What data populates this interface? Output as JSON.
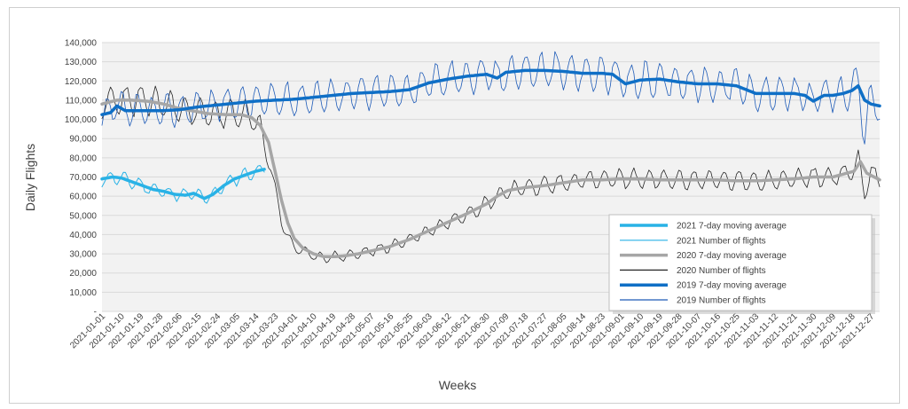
{
  "chart_data": {
    "type": "line",
    "title": "",
    "xlabel": "Weeks",
    "ylabel": "Daily Flights",
    "ylim": [
      0,
      140000
    ],
    "yticks": [
      0,
      10000,
      20000,
      30000,
      40000,
      50000,
      60000,
      70000,
      80000,
      90000,
      100000,
      110000,
      120000,
      130000,
      140000
    ],
    "ytick_labels": [
      "-",
      "10,000",
      "20,000",
      "30,000",
      "40,000",
      "50,000",
      "60,000",
      "70,000",
      "80,000",
      "90,000",
      "100,000",
      "110,000",
      "120,000",
      "130,000",
      "140,000"
    ],
    "xticks": [
      "2021-01-01",
      "2021-01-10",
      "2021-01-19",
      "2021-01-28",
      "2021-02-06",
      "2021-02-15",
      "2021-02-24",
      "2021-03-05",
      "2021-03-14",
      "2021-03-23",
      "2021-04-01",
      "2021-04-10",
      "2021-04-19",
      "2021-04-28",
      "2021-05-07",
      "2021-05-16",
      "2021-05-25",
      "2021-06-03",
      "2021-06-12",
      "2021-06-21",
      "2021-06-30",
      "2021-07-09",
      "2021-07-18",
      "2021-07-27",
      "2021-08-05",
      "2021-08-14",
      "2021-08-23",
      "2021-09-01",
      "2021-09-10",
      "2021-09-19",
      "2021-09-28",
      "2021-10-07",
      "2021-10-16",
      "2021-10-25",
      "2021-11-03",
      "2021-11-12",
      "2021-11-21",
      "2021-11-30",
      "2021-12-09",
      "2021-12-18",
      "2021-12-27"
    ],
    "x_start": "2021-01-01",
    "x_end": "2021-12-31",
    "grid": "horizontal",
    "legend_position": "bottom-right",
    "series": [
      {
        "name": "2021 7-day moving average",
        "color": "#29b2e6",
        "width": 3.5,
        "kind": "avg",
        "anchors": [
          [
            "2021-01-01",
            69000
          ],
          [
            "2021-01-06",
            70000
          ],
          [
            "2021-01-10",
            69500
          ],
          [
            "2021-01-15",
            67500
          ],
          [
            "2021-01-20",
            65500
          ],
          [
            "2021-01-25",
            63500
          ],
          [
            "2021-01-30",
            62500
          ],
          [
            "2021-02-04",
            61000
          ],
          [
            "2021-02-09",
            60500
          ],
          [
            "2021-02-13",
            61500
          ],
          [
            "2021-02-18",
            58800
          ],
          [
            "2021-02-22",
            61000
          ],
          [
            "2021-02-27",
            65500
          ],
          [
            "2021-03-04",
            69000
          ],
          [
            "2021-03-09",
            71000
          ],
          [
            "2021-03-14",
            73000
          ],
          [
            "2021-03-18",
            74000
          ]
        ]
      },
      {
        "name": "2021 Number of flights",
        "color": "#29b2e6",
        "width": 1,
        "kind": "daily",
        "amp": 5500,
        "seed": 11,
        "anchors": [
          [
            "2021-01-01",
            68000
          ],
          [
            "2021-01-06",
            70000
          ],
          [
            "2021-01-10",
            69500
          ],
          [
            "2021-01-15",
            67500
          ],
          [
            "2021-01-20",
            65500
          ],
          [
            "2021-01-25",
            63500
          ],
          [
            "2021-01-30",
            62500
          ],
          [
            "2021-02-04",
            61000
          ],
          [
            "2021-02-09",
            60500
          ],
          [
            "2021-02-13",
            61500
          ],
          [
            "2021-02-18",
            58800
          ],
          [
            "2021-02-22",
            61000
          ],
          [
            "2021-02-27",
            65500
          ],
          [
            "2021-03-04",
            69000
          ],
          [
            "2021-03-09",
            71000
          ],
          [
            "2021-03-14",
            73000
          ],
          [
            "2021-03-18",
            74000
          ]
        ]
      },
      {
        "name": "2020 7-day moving average",
        "color": "#a6a6a6",
        "width": 3.5,
        "kind": "avg",
        "anchors": [
          [
            "2021-01-01",
            108000
          ],
          [
            "2021-01-08",
            110000
          ],
          [
            "2021-01-15",
            110000
          ],
          [
            "2021-01-22",
            109500
          ],
          [
            "2021-01-30",
            108000
          ],
          [
            "2021-02-05",
            106000
          ],
          [
            "2021-02-12",
            104500
          ],
          [
            "2021-02-20",
            103000
          ],
          [
            "2021-02-28",
            102500
          ],
          [
            "2021-03-07",
            102500
          ],
          [
            "2021-03-12",
            101000
          ],
          [
            "2021-03-16",
            97000
          ],
          [
            "2021-03-20",
            88000
          ],
          [
            "2021-03-23",
            73000
          ],
          [
            "2021-03-26",
            58000
          ],
          [
            "2021-03-29",
            46000
          ],
          [
            "2021-04-01",
            38000
          ],
          [
            "2021-04-05",
            33000
          ],
          [
            "2021-04-10",
            30000
          ],
          [
            "2021-04-15",
            28500
          ],
          [
            "2021-04-20",
            28500
          ],
          [
            "2021-04-25",
            29000
          ],
          [
            "2021-05-01",
            30000
          ],
          [
            "2021-05-07",
            31500
          ],
          [
            "2021-05-15",
            33500
          ],
          [
            "2021-05-25",
            37500
          ],
          [
            "2021-06-03",
            42000
          ],
          [
            "2021-06-12",
            46500
          ],
          [
            "2021-06-21",
            51000
          ],
          [
            "2021-06-30",
            56000
          ],
          [
            "2021-07-05",
            60000
          ],
          [
            "2021-07-10",
            63000
          ],
          [
            "2021-07-18",
            64500
          ],
          [
            "2021-07-27",
            65500
          ],
          [
            "2021-08-05",
            67000
          ],
          [
            "2021-08-14",
            68500
          ],
          [
            "2021-08-23",
            68500
          ],
          [
            "2021-09-01",
            69000
          ],
          [
            "2021-09-10",
            69000
          ],
          [
            "2021-09-19",
            68500
          ],
          [
            "2021-09-28",
            68500
          ],
          [
            "2021-10-07",
            68500
          ],
          [
            "2021-10-16",
            68500
          ],
          [
            "2021-10-25",
            68000
          ],
          [
            "2021-11-03",
            68000
          ],
          [
            "2021-11-12",
            68500
          ],
          [
            "2021-11-21",
            69000
          ],
          [
            "2021-11-30",
            70000
          ],
          [
            "2021-12-09",
            70000
          ],
          [
            "2021-12-14",
            71500
          ],
          [
            "2021-12-19",
            73000
          ],
          [
            "2021-12-22",
            78000
          ],
          [
            "2021-12-25",
            72000
          ],
          [
            "2021-12-31",
            68500
          ]
        ]
      },
      {
        "name": "2020 Number of flights",
        "color": "#262626",
        "width": 0.8,
        "kind": "daily",
        "amp": 7500,
        "seed": 23,
        "anchors": [
          [
            "2021-01-01",
            108000
          ],
          [
            "2021-01-08",
            110000
          ],
          [
            "2021-01-15",
            110000
          ],
          [
            "2021-01-22",
            109500
          ],
          [
            "2021-01-30",
            108000
          ],
          [
            "2021-02-05",
            106000
          ],
          [
            "2021-02-12",
            104500
          ],
          [
            "2021-02-20",
            103000
          ],
          [
            "2021-02-28",
            102500
          ],
          [
            "2021-03-07",
            102500
          ],
          [
            "2021-03-12",
            101000
          ],
          [
            "2021-03-16",
            95000
          ],
          [
            "2021-03-20",
            80000
          ],
          [
            "2021-03-23",
            63000
          ],
          [
            "2021-03-26",
            48000
          ],
          [
            "2021-03-29",
            38000
          ],
          [
            "2021-04-01",
            34000
          ],
          [
            "2021-04-05",
            31000
          ],
          [
            "2021-04-10",
            29000
          ],
          [
            "2021-04-15",
            28000
          ],
          [
            "2021-04-20",
            28500
          ],
          [
            "2021-04-25",
            29000
          ],
          [
            "2021-05-01",
            30000
          ],
          [
            "2021-05-07",
            31500
          ],
          [
            "2021-05-15",
            33500
          ],
          [
            "2021-05-25",
            37500
          ],
          [
            "2021-06-03",
            42000
          ],
          [
            "2021-06-12",
            46500
          ],
          [
            "2021-06-21",
            51000
          ],
          [
            "2021-06-30",
            56000
          ],
          [
            "2021-07-05",
            60000
          ],
          [
            "2021-07-10",
            63000
          ],
          [
            "2021-07-18",
            64500
          ],
          [
            "2021-07-27",
            65500
          ],
          [
            "2021-08-05",
            67000
          ],
          [
            "2021-08-14",
            68500
          ],
          [
            "2021-08-23",
            68500
          ],
          [
            "2021-09-01",
            69000
          ],
          [
            "2021-09-10",
            69000
          ],
          [
            "2021-09-19",
            68500
          ],
          [
            "2021-09-28",
            68500
          ],
          [
            "2021-10-07",
            68500
          ],
          [
            "2021-10-16",
            68500
          ],
          [
            "2021-10-25",
            68000
          ],
          [
            "2021-11-03",
            68000
          ],
          [
            "2021-11-12",
            68500
          ],
          [
            "2021-11-21",
            69000
          ],
          [
            "2021-11-30",
            70000
          ],
          [
            "2021-12-09",
            70000
          ],
          [
            "2021-12-14",
            71500
          ],
          [
            "2021-12-19",
            74000
          ],
          [
            "2021-12-21",
            80000
          ],
          [
            "2021-12-24",
            62000
          ],
          [
            "2021-12-27",
            72000
          ],
          [
            "2021-12-31",
            68000
          ]
        ]
      },
      {
        "name": "2019 7-day moving average",
        "color": "#0f6fc6",
        "width": 3.5,
        "kind": "avg",
        "anchors": [
          [
            "2021-01-01",
            102500
          ],
          [
            "2021-01-05",
            103500
          ],
          [
            "2021-01-08",
            107000
          ],
          [
            "2021-01-12",
            104500
          ],
          [
            "2021-01-20",
            104500
          ],
          [
            "2021-01-28",
            104500
          ],
          [
            "2021-02-06",
            105000
          ],
          [
            "2021-02-15",
            106500
          ],
          [
            "2021-02-24",
            107500
          ],
          [
            "2021-03-05",
            108500
          ],
          [
            "2021-03-14",
            109500
          ],
          [
            "2021-03-23",
            110000
          ],
          [
            "2021-04-01",
            110500
          ],
          [
            "2021-04-10",
            111500
          ],
          [
            "2021-04-19",
            112500
          ],
          [
            "2021-04-28",
            113500
          ],
          [
            "2021-05-07",
            114000
          ],
          [
            "2021-05-16",
            114500
          ],
          [
            "2021-05-25",
            115500
          ],
          [
            "2021-06-03",
            119000
          ],
          [
            "2021-06-12",
            121000
          ],
          [
            "2021-06-21",
            122500
          ],
          [
            "2021-06-30",
            123500
          ],
          [
            "2021-07-05",
            121500
          ],
          [
            "2021-07-09",
            124500
          ],
          [
            "2021-07-18",
            125500
          ],
          [
            "2021-07-27",
            125500
          ],
          [
            "2021-08-05",
            125000
          ],
          [
            "2021-08-14",
            124000
          ],
          [
            "2021-08-23",
            124000
          ],
          [
            "2021-08-28",
            123500
          ],
          [
            "2021-09-03",
            118500
          ],
          [
            "2021-09-10",
            120500
          ],
          [
            "2021-09-19",
            121000
          ],
          [
            "2021-09-28",
            119500
          ],
          [
            "2021-10-07",
            118500
          ],
          [
            "2021-10-16",
            118500
          ],
          [
            "2021-10-25",
            117500
          ],
          [
            "2021-11-03",
            113500
          ],
          [
            "2021-11-12",
            113500
          ],
          [
            "2021-11-21",
            113500
          ],
          [
            "2021-11-26",
            112500
          ],
          [
            "2021-11-30",
            109500
          ],
          [
            "2021-12-05",
            112500
          ],
          [
            "2021-12-09",
            112500
          ],
          [
            "2021-12-14",
            113500
          ],
          [
            "2021-12-18",
            115000
          ],
          [
            "2021-12-21",
            117500
          ],
          [
            "2021-12-24",
            110000
          ],
          [
            "2021-12-27",
            108000
          ],
          [
            "2021-12-31",
            107000
          ]
        ]
      },
      {
        "name": "2019 Number of flights",
        "color": "#1e5bb8",
        "width": 0.8,
        "kind": "daily",
        "amp": 8000,
        "seed": 37,
        "anchors": [
          [
            "2021-01-01",
            101000
          ],
          [
            "2021-01-05",
            103500
          ],
          [
            "2021-01-08",
            108000
          ],
          [
            "2021-01-12",
            104500
          ],
          [
            "2021-01-20",
            104500
          ],
          [
            "2021-01-28",
            104500
          ],
          [
            "2021-02-06",
            105000
          ],
          [
            "2021-02-15",
            106500
          ],
          [
            "2021-02-24",
            107500
          ],
          [
            "2021-03-05",
            108500
          ],
          [
            "2021-03-14",
            109500
          ],
          [
            "2021-03-23",
            110000
          ],
          [
            "2021-04-01",
            110500
          ],
          [
            "2021-04-10",
            111500
          ],
          [
            "2021-04-19",
            112500
          ],
          [
            "2021-04-28",
            113500
          ],
          [
            "2021-05-07",
            114000
          ],
          [
            "2021-05-16",
            114500
          ],
          [
            "2021-05-25",
            115500
          ],
          [
            "2021-06-03",
            119000
          ],
          [
            "2021-06-12",
            121000
          ],
          [
            "2021-06-21",
            122500
          ],
          [
            "2021-06-30",
            123500
          ],
          [
            "2021-07-05",
            121500
          ],
          [
            "2021-07-09",
            124500
          ],
          [
            "2021-07-18",
            125500
          ],
          [
            "2021-07-27",
            125500
          ],
          [
            "2021-08-05",
            125000
          ],
          [
            "2021-08-14",
            124000
          ],
          [
            "2021-08-23",
            124000
          ],
          [
            "2021-08-28",
            123500
          ],
          [
            "2021-09-03",
            118500
          ],
          [
            "2021-09-10",
            120500
          ],
          [
            "2021-09-19",
            121000
          ],
          [
            "2021-09-28",
            119500
          ],
          [
            "2021-10-07",
            118500
          ],
          [
            "2021-10-16",
            118500
          ],
          [
            "2021-10-25",
            117500
          ],
          [
            "2021-11-03",
            113500
          ],
          [
            "2021-11-12",
            113500
          ],
          [
            "2021-11-21",
            113500
          ],
          [
            "2021-11-26",
            112500
          ],
          [
            "2021-11-30",
            109500
          ],
          [
            "2021-12-05",
            112500
          ],
          [
            "2021-12-09",
            112500
          ],
          [
            "2021-12-14",
            113500
          ],
          [
            "2021-12-18",
            115000
          ],
          [
            "2021-12-21",
            119000
          ],
          [
            "2021-12-24",
            90000
          ],
          [
            "2021-12-26",
            110000
          ],
          [
            "2021-12-29",
            108000
          ],
          [
            "2021-12-31",
            106500
          ]
        ]
      }
    ]
  }
}
